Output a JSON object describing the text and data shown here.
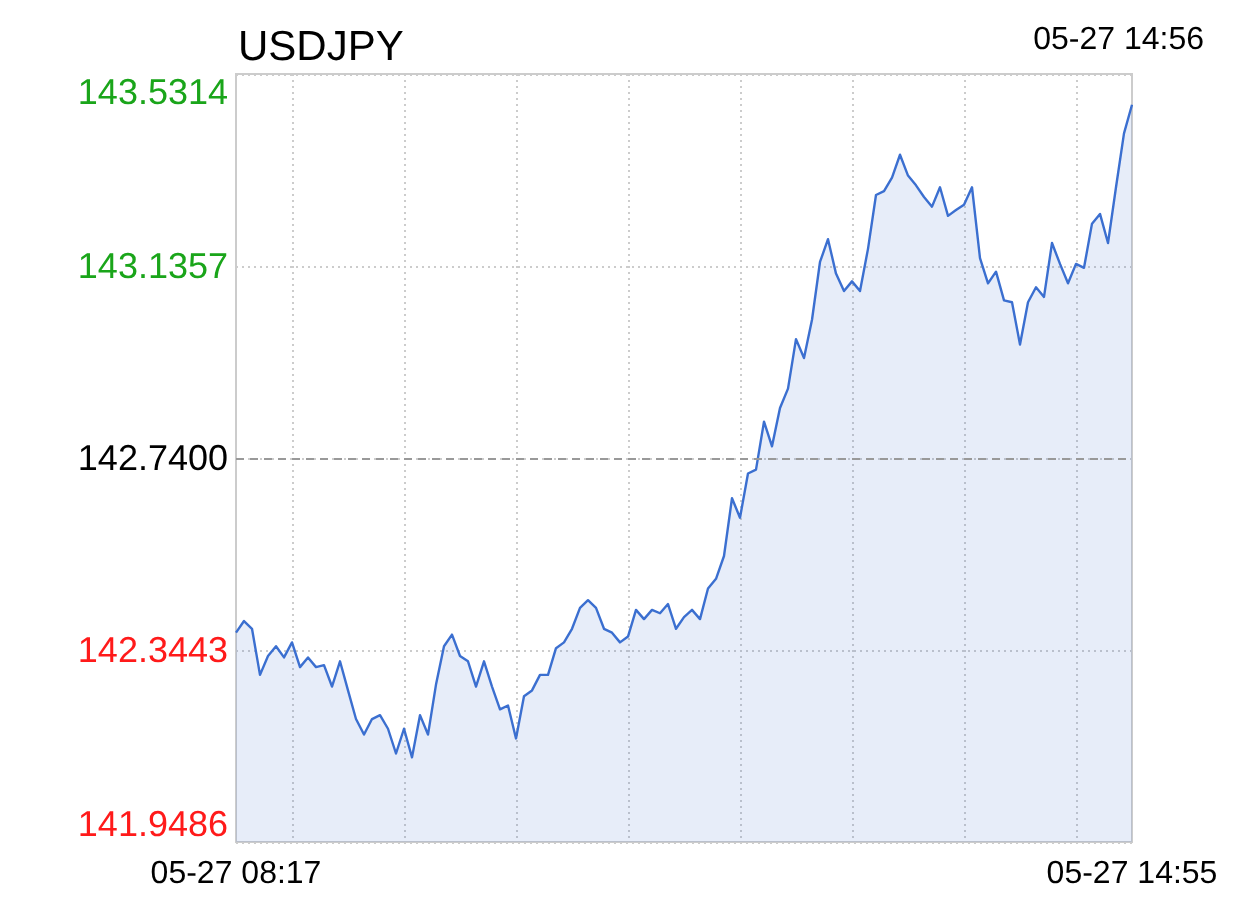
{
  "chart_data": {
    "type": "area",
    "title": "USDJPY",
    "annotations": [
      "05-27 14:56"
    ],
    "categories": [
      "05-27 08:17",
      null,
      null,
      null,
      null,
      null,
      null,
      null,
      null,
      null,
      null,
      null,
      null,
      null,
      null,
      null,
      null,
      null,
      null,
      null,
      null,
      null,
      null,
      null,
      null,
      null,
      null,
      null,
      null,
      null,
      null,
      null,
      null,
      null,
      null,
      null,
      null,
      null,
      null,
      null,
      null,
      null,
      null,
      null,
      null,
      null,
      null,
      null,
      null,
      null,
      null,
      null,
      null,
      null,
      null,
      null,
      null,
      null,
      null,
      null,
      null,
      null,
      null,
      null,
      null,
      null,
      null,
      null,
      null,
      null,
      null,
      null,
      null,
      null,
      null,
      null,
      null,
      null,
      null,
      null,
      null,
      null,
      null,
      null,
      null,
      null,
      null,
      null,
      null,
      null,
      null,
      null,
      null,
      null,
      null,
      null,
      null,
      null,
      null,
      null,
      null,
      null,
      null,
      null,
      null,
      null,
      null,
      null,
      null,
      null,
      null,
      null,
      "05-27 14:55"
    ],
    "series": [
      {
        "color": "#3b6fd0",
        "values": [
          142.38,
          142.404,
          142.388,
          142.293,
          142.332,
          142.352,
          142.329,
          142.36,
          142.309,
          142.329,
          142.309,
          142.313,
          142.269,
          142.321,
          142.261,
          142.202,
          142.17,
          142.202,
          142.21,
          142.182,
          142.131,
          142.182,
          142.123,
          142.21,
          142.17,
          142.273,
          142.352,
          142.376,
          142.332,
          142.321,
          142.269,
          142.321,
          142.269,
          142.222,
          142.23,
          142.162,
          142.249,
          142.261,
          142.293,
          142.293,
          142.348,
          142.36,
          142.388,
          142.431,
          142.447,
          142.431,
          142.388,
          142.38,
          142.36,
          142.372,
          142.427,
          142.408,
          142.427,
          142.42,
          142.439,
          142.388,
          142.412,
          142.427,
          142.408,
          142.471,
          142.491,
          142.538,
          142.657,
          142.617,
          142.708,
          142.716,
          142.815,
          142.764,
          142.843,
          142.883,
          142.985,
          142.946,
          143.025,
          143.144,
          143.191,
          143.12,
          143.084,
          143.104,
          143.084,
          143.171,
          143.282,
          143.29,
          143.318,
          143.365,
          143.322,
          143.302,
          143.278,
          143.258,
          143.298,
          143.239,
          143.251,
          143.262,
          143.298,
          143.152,
          143.1,
          143.124,
          143.065,
          143.061,
          142.974,
          143.061,
          143.092,
          143.072,
          143.183,
          143.14,
          143.1,
          143.14,
          143.132,
          143.223,
          143.243,
          143.183,
          143.298,
          143.409,
          143.468
        ]
      }
    ],
    "ylim": [
      141.9486,
      143.5314
    ],
    "yticks": [
      141.9486,
      142.3443,
      {
        "value": 142.74,
        "label": "142.7400"
      },
      143.1357,
      143.5314
    ],
    "ref_lines": [
      {
        "axis": "y",
        "value": 142.74,
        "color": "#999999",
        "line_style": "dashed"
      }
    ],
    "grid": true,
    "marker": "none"
  }
}
